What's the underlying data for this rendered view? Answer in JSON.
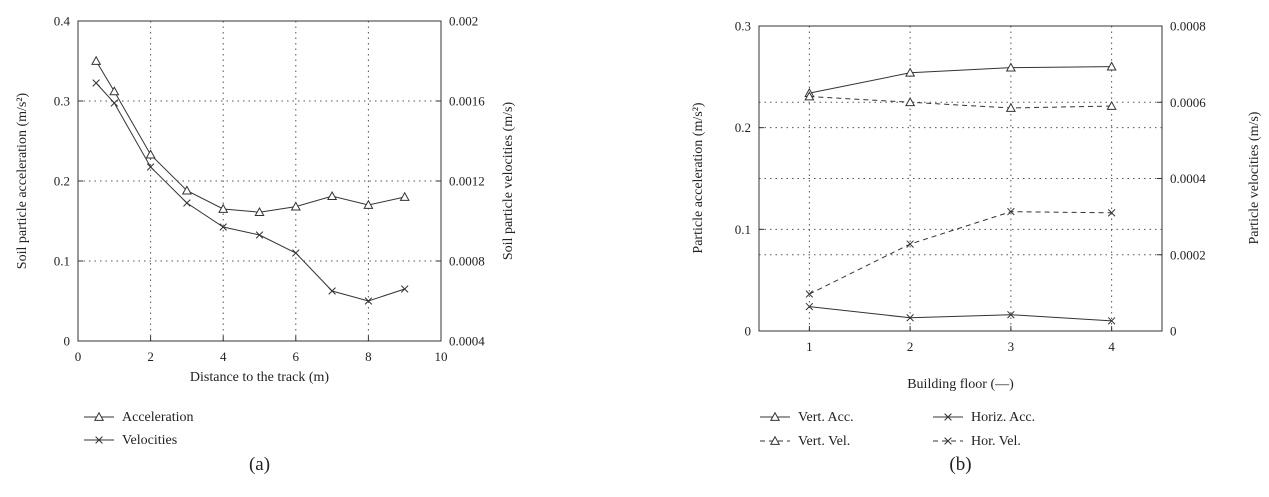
{
  "chart_data": [
    {
      "type": "line",
      "caption": "(a)",
      "xlabel": "Distance to the track (m)",
      "ylabel": "Soil particle acceleration (m/s²)",
      "y2label": "Soil particle velocities (m/s)",
      "xlim": [
        0,
        10
      ],
      "ylim": [
        0,
        0.4
      ],
      "y2lim": [
        0.0004,
        0.002
      ],
      "x_ticks": [
        0,
        2,
        4,
        6,
        8,
        10
      ],
      "x_tick_labels": [
        "0",
        "2",
        "4",
        "6",
        "8",
        "10"
      ],
      "y_ticks": [
        0,
        0.1,
        0.2,
        0.3,
        0.4
      ],
      "y_tick_labels": [
        "0",
        "0.1",
        "0.2",
        "0.3",
        "0.4"
      ],
      "y2_ticks": [
        0.0004,
        0.0008,
        0.0012,
        0.0016,
        0.002
      ],
      "y2_tick_labels": [
        "0.0004",
        "0.0008",
        "0.0012",
        "0.0016",
        "0.002"
      ],
      "grid": true,
      "legend_position": "bottom-left",
      "series": [
        {
          "name": "Acceleration",
          "axis": "left",
          "marker": "triangle",
          "dashed": false,
          "x": [
            0.5,
            1,
            2,
            3,
            4,
            5,
            6,
            7,
            8,
            9
          ],
          "values": [
            0.35,
            0.312,
            0.233,
            0.188,
            0.165,
            0.161,
            0.168,
            0.181,
            0.17,
            0.18
          ]
        },
        {
          "name": "Velocities",
          "axis": "right",
          "marker": "x",
          "dashed": false,
          "x": [
            0.5,
            1,
            2,
            3,
            4,
            5,
            6,
            7,
            8,
            9
          ],
          "values": [
            0.00169,
            0.00159,
            0.00127,
            0.00109,
            0.00097,
            0.00093,
            0.00084,
            0.00065,
            0.0006,
            0.00066
          ]
        }
      ]
    },
    {
      "type": "line",
      "caption": "(b)",
      "xlabel": "Building floor (—)",
      "ylabel": "Particle acceleration (m/s²)",
      "y2label": "Particle velocities (m/s)",
      "xlim": [
        0.5,
        4.5
      ],
      "ylim": [
        0,
        0.3
      ],
      "y2lim": [
        0,
        0.0008
      ],
      "x_ticks": [
        1,
        2,
        3,
        4
      ],
      "x_tick_labels": [
        "1",
        "2",
        "3",
        "4"
      ],
      "y_ticks": [
        0,
        0.1,
        0.2,
        0.3
      ],
      "y_tick_labels": [
        "0",
        "0.1",
        "0.2",
        "0.3"
      ],
      "y2_ticks": [
        0,
        0.0002,
        0.0004,
        0.0006,
        0.0008
      ],
      "y2_tick_labels": [
        "0",
        "0.0002",
        "0.0004",
        "0.0006",
        "0.0008"
      ],
      "grid": true,
      "legend_position": "bottom",
      "series": [
        {
          "name": "Vert. Acc.",
          "axis": "left",
          "marker": "triangle",
          "dashed": false,
          "x": [
            1,
            2,
            3,
            4
          ],
          "values": [
            0.234,
            0.254,
            0.259,
            0.26
          ]
        },
        {
          "name": "Horiz. Acc.",
          "axis": "left",
          "marker": "x",
          "dashed": false,
          "x": [
            1,
            2,
            3,
            4
          ],
          "values": [
            0.024,
            0.013,
            0.016,
            0.01
          ]
        },
        {
          "name": "Vert. Vel.",
          "axis": "right",
          "marker": "triangle",
          "dashed": true,
          "x": [
            1,
            2,
            3,
            4
          ],
          "values": [
            0.000615,
            0.0006,
            0.000585,
            0.00059
          ]
        },
        {
          "name": "Hor. Vel.",
          "axis": "right",
          "marker": "x",
          "dashed": true,
          "x": [
            1,
            2,
            3,
            4
          ],
          "values": [
            9.7e-05,
            0.000228,
            0.000313,
            0.00031
          ]
        }
      ]
    }
  ]
}
